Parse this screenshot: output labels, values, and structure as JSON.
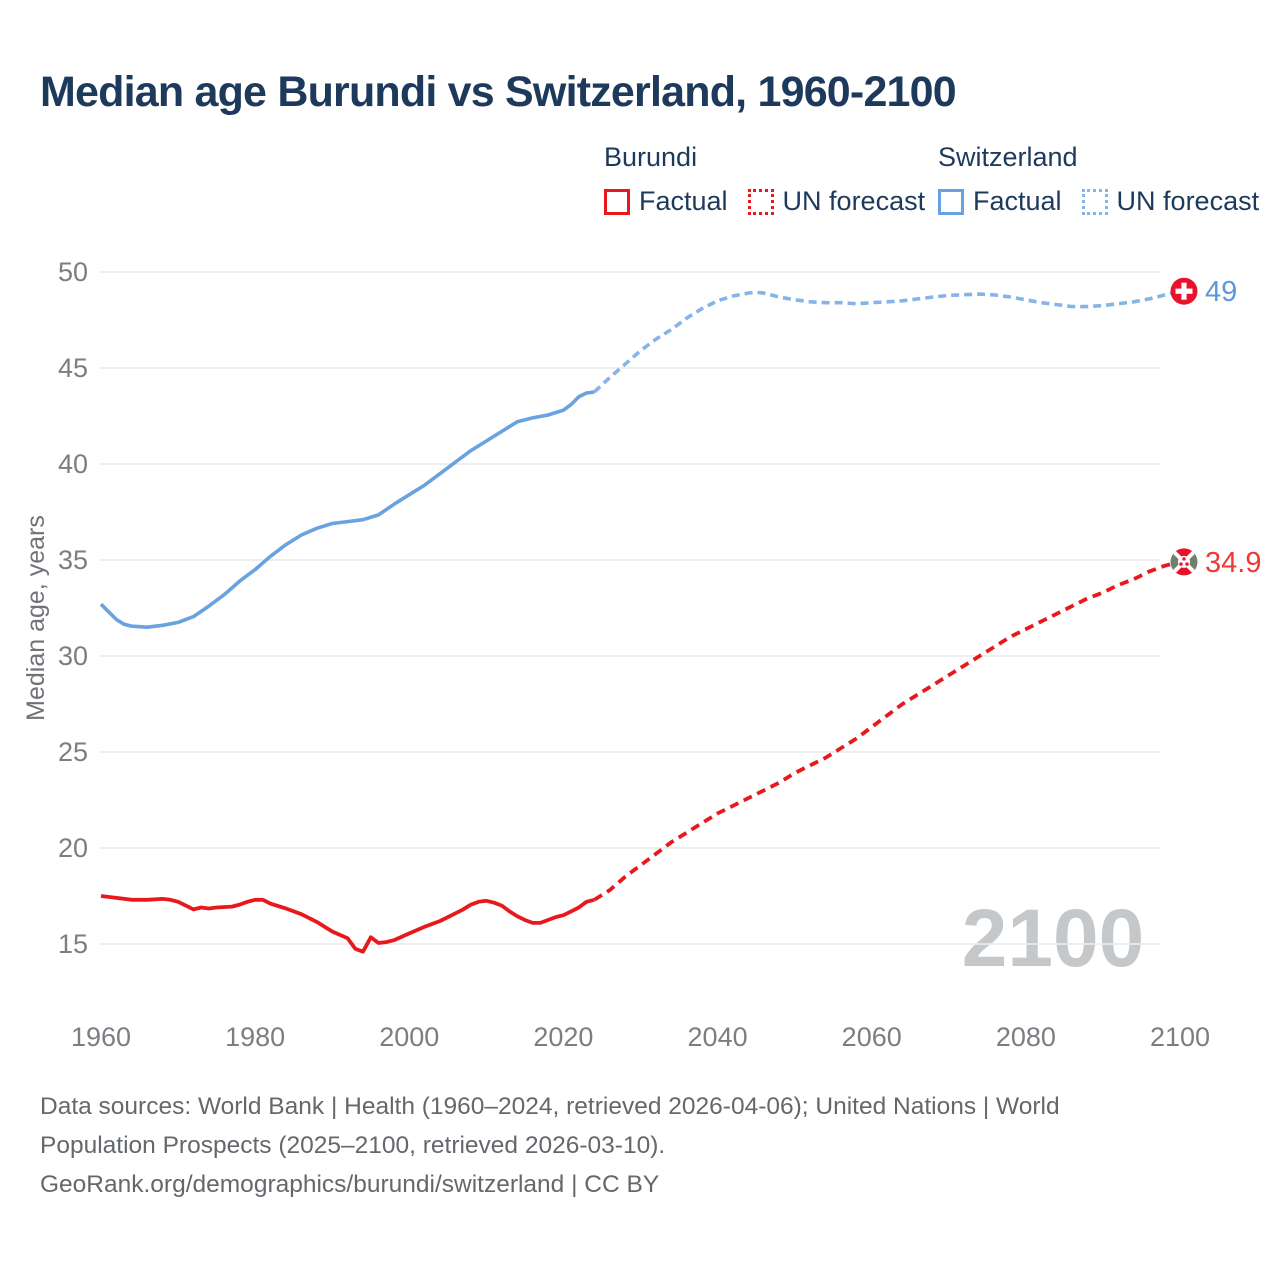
{
  "page": {
    "title": "Median age Burundi vs Switzerland, 1960-2100"
  },
  "legend": {
    "burundi": {
      "title": "Burundi",
      "factual_label": "Factual",
      "forecast_label": "UN forecast"
    },
    "switzerland": {
      "title": "Switzerland",
      "factual_label": "Factual",
      "forecast_label": "UN forecast"
    }
  },
  "colors": {
    "title_navy": "#1d3a5c",
    "burundi_factual": "#e8191d",
    "burundi_forecast": "#e8191d",
    "switzerland_factual": "#69a2e0",
    "switzerland_forecast": "#85b4e8",
    "gridline": "#ebebec",
    "tick_text": "#7b7e82",
    "watermark_gray": "#c5c8ca"
  },
  "footer": {
    "line1": "Data sources: World Bank | Health (1960–2024, retrieved 2026-04-06); United Nations | World",
    "line2": "Population Prospects (2025–2100, retrieved 2026-03-10).",
    "line3": "GeoRank.org/demographics/burundi/switzerland | CC BY"
  },
  "chart_data": {
    "type": "line",
    "title": "Median age Burundi vs Switzerland, 1960-2100",
    "xlabel": "",
    "ylabel": "Median age, years",
    "watermark": "2100",
    "xlim": [
      1960,
      2100
    ],
    "ylim": [
      15,
      50
    ],
    "x_ticks": [
      1960,
      1980,
      2000,
      2020,
      2040,
      2060,
      2080,
      2100
    ],
    "y_ticks": [
      15,
      20,
      25,
      30,
      35,
      40,
      45,
      50
    ],
    "grid": "horizontal",
    "legend_position": "top",
    "series": [
      {
        "key": "switzerland-factual",
        "name": "Switzerland Factual",
        "style": "solid",
        "color": "#69a2e0",
        "width": 3.6,
        "points": [
          [
            1960,
            32.7
          ],
          [
            1961,
            32.3
          ],
          [
            1962,
            31.9
          ],
          [
            1963,
            31.65
          ],
          [
            1964,
            31.55
          ],
          [
            1966,
            31.5
          ],
          [
            1968,
            31.6
          ],
          [
            1970,
            31.75
          ],
          [
            1972,
            32.05
          ],
          [
            1974,
            32.6
          ],
          [
            1976,
            33.2
          ],
          [
            1978,
            33.9
          ],
          [
            1980,
            34.5
          ],
          [
            1982,
            35.2
          ],
          [
            1984,
            35.8
          ],
          [
            1986,
            36.3
          ],
          [
            1988,
            36.65
          ],
          [
            1990,
            36.9
          ],
          [
            1992,
            37.0
          ],
          [
            1994,
            37.1
          ],
          [
            1996,
            37.35
          ],
          [
            1998,
            37.9
          ],
          [
            2000,
            38.4
          ],
          [
            2002,
            38.9
          ],
          [
            2004,
            39.5
          ],
          [
            2006,
            40.1
          ],
          [
            2008,
            40.7
          ],
          [
            2010,
            41.2
          ],
          [
            2012,
            41.7
          ],
          [
            2014,
            42.2
          ],
          [
            2016,
            42.4
          ],
          [
            2018,
            42.55
          ],
          [
            2020,
            42.8
          ],
          [
            2021,
            43.1
          ],
          [
            2022,
            43.5
          ],
          [
            2023,
            43.7
          ],
          [
            2024,
            43.75
          ]
        ]
      },
      {
        "key": "switzerland-forecast",
        "name": "Switzerland UN forecast",
        "style": "dashed",
        "color": "#85b4e8",
        "width": 3.6,
        "points": [
          [
            2024,
            43.75
          ],
          [
            2026,
            44.5
          ],
          [
            2028,
            45.2
          ],
          [
            2030,
            45.9
          ],
          [
            2032,
            46.5
          ],
          [
            2034,
            47.0
          ],
          [
            2036,
            47.6
          ],
          [
            2038,
            48.1
          ],
          [
            2040,
            48.5
          ],
          [
            2042,
            48.75
          ],
          [
            2044,
            48.9
          ],
          [
            2045,
            48.95
          ],
          [
            2046,
            48.9
          ],
          [
            2048,
            48.7
          ],
          [
            2050,
            48.55
          ],
          [
            2052,
            48.45
          ],
          [
            2054,
            48.4
          ],
          [
            2056,
            48.4
          ],
          [
            2058,
            48.35
          ],
          [
            2060,
            48.4
          ],
          [
            2062,
            48.45
          ],
          [
            2064,
            48.5
          ],
          [
            2066,
            48.6
          ],
          [
            2068,
            48.7
          ],
          [
            2070,
            48.78
          ],
          [
            2072,
            48.82
          ],
          [
            2074,
            48.85
          ],
          [
            2076,
            48.8
          ],
          [
            2078,
            48.7
          ],
          [
            2080,
            48.55
          ],
          [
            2082,
            48.4
          ],
          [
            2084,
            48.3
          ],
          [
            2086,
            48.2
          ],
          [
            2088,
            48.2
          ],
          [
            2090,
            48.25
          ],
          [
            2092,
            48.35
          ],
          [
            2094,
            48.45
          ],
          [
            2096,
            48.6
          ],
          [
            2098,
            48.8
          ],
          [
            2100,
            49.0
          ]
        ]
      },
      {
        "key": "burundi-factual",
        "name": "Burundi Factual",
        "style": "solid",
        "color": "#e8191d",
        "width": 3.8,
        "points": [
          [
            1960,
            17.5
          ],
          [
            1962,
            17.4
          ],
          [
            1964,
            17.3
          ],
          [
            1966,
            17.3
          ],
          [
            1968,
            17.35
          ],
          [
            1969,
            17.3
          ],
          [
            1970,
            17.2
          ],
          [
            1971,
            17.0
          ],
          [
            1972,
            16.8
          ],
          [
            1973,
            16.9
          ],
          [
            1974,
            16.85
          ],
          [
            1975,
            16.9
          ],
          [
            1977,
            16.95
          ],
          [
            1978,
            17.05
          ],
          [
            1979,
            17.2
          ],
          [
            1980,
            17.3
          ],
          [
            1981,
            17.3
          ],
          [
            1982,
            17.1
          ],
          [
            1984,
            16.85
          ],
          [
            1986,
            16.55
          ],
          [
            1988,
            16.15
          ],
          [
            1990,
            15.65
          ],
          [
            1992,
            15.3
          ],
          [
            1993,
            14.75
          ],
          [
            1994,
            14.6
          ],
          [
            1995,
            15.35
          ],
          [
            1996,
            15.05
          ],
          [
            1997,
            15.1
          ],
          [
            1998,
            15.2
          ],
          [
            2000,
            15.55
          ],
          [
            2002,
            15.9
          ],
          [
            2004,
            16.2
          ],
          [
            2006,
            16.6
          ],
          [
            2007,
            16.8
          ],
          [
            2008,
            17.05
          ],
          [
            2009,
            17.2
          ],
          [
            2010,
            17.25
          ],
          [
            2011,
            17.15
          ],
          [
            2012,
            17.0
          ],
          [
            2013,
            16.7
          ],
          [
            2014,
            16.45
          ],
          [
            2015,
            16.25
          ],
          [
            2016,
            16.1
          ],
          [
            2017,
            16.1
          ],
          [
            2018,
            16.25
          ],
          [
            2019,
            16.4
          ],
          [
            2020,
            16.5
          ],
          [
            2021,
            16.7
          ],
          [
            2022,
            16.9
          ],
          [
            2023,
            17.2
          ],
          [
            2024,
            17.3
          ]
        ]
      },
      {
        "key": "burundi-forecast",
        "name": "Burundi UN forecast",
        "style": "dashed",
        "color": "#e8191d",
        "width": 3.8,
        "points": [
          [
            2024,
            17.3
          ],
          [
            2026,
            17.8
          ],
          [
            2028,
            18.5
          ],
          [
            2030,
            19.1
          ],
          [
            2032,
            19.7
          ],
          [
            2034,
            20.3
          ],
          [
            2036,
            20.8
          ],
          [
            2038,
            21.3
          ],
          [
            2040,
            21.8
          ],
          [
            2042,
            22.2
          ],
          [
            2044,
            22.6
          ],
          [
            2046,
            23.0
          ],
          [
            2048,
            23.4
          ],
          [
            2050,
            23.9
          ],
          [
            2052,
            24.3
          ],
          [
            2054,
            24.7
          ],
          [
            2056,
            25.2
          ],
          [
            2058,
            25.7
          ],
          [
            2060,
            26.3
          ],
          [
            2062,
            26.9
          ],
          [
            2064,
            27.5
          ],
          [
            2066,
            28.0
          ],
          [
            2068,
            28.5
          ],
          [
            2070,
            29.0
          ],
          [
            2072,
            29.5
          ],
          [
            2074,
            30.0
          ],
          [
            2076,
            30.5
          ],
          [
            2078,
            31.0
          ],
          [
            2080,
            31.4
          ],
          [
            2082,
            31.8
          ],
          [
            2084,
            32.2
          ],
          [
            2086,
            32.6
          ],
          [
            2088,
            33.0
          ],
          [
            2090,
            33.3
          ],
          [
            2092,
            33.7
          ],
          [
            2094,
            34.0
          ],
          [
            2096,
            34.4
          ],
          [
            2098,
            34.7
          ],
          [
            2100,
            34.9
          ]
        ]
      }
    ],
    "end_labels": [
      {
        "flag": "switzerland",
        "value": "49",
        "color": "#5b9ad8"
      },
      {
        "flag": "burundi",
        "value": "34.9",
        "color": "#ee3936"
      }
    ]
  }
}
